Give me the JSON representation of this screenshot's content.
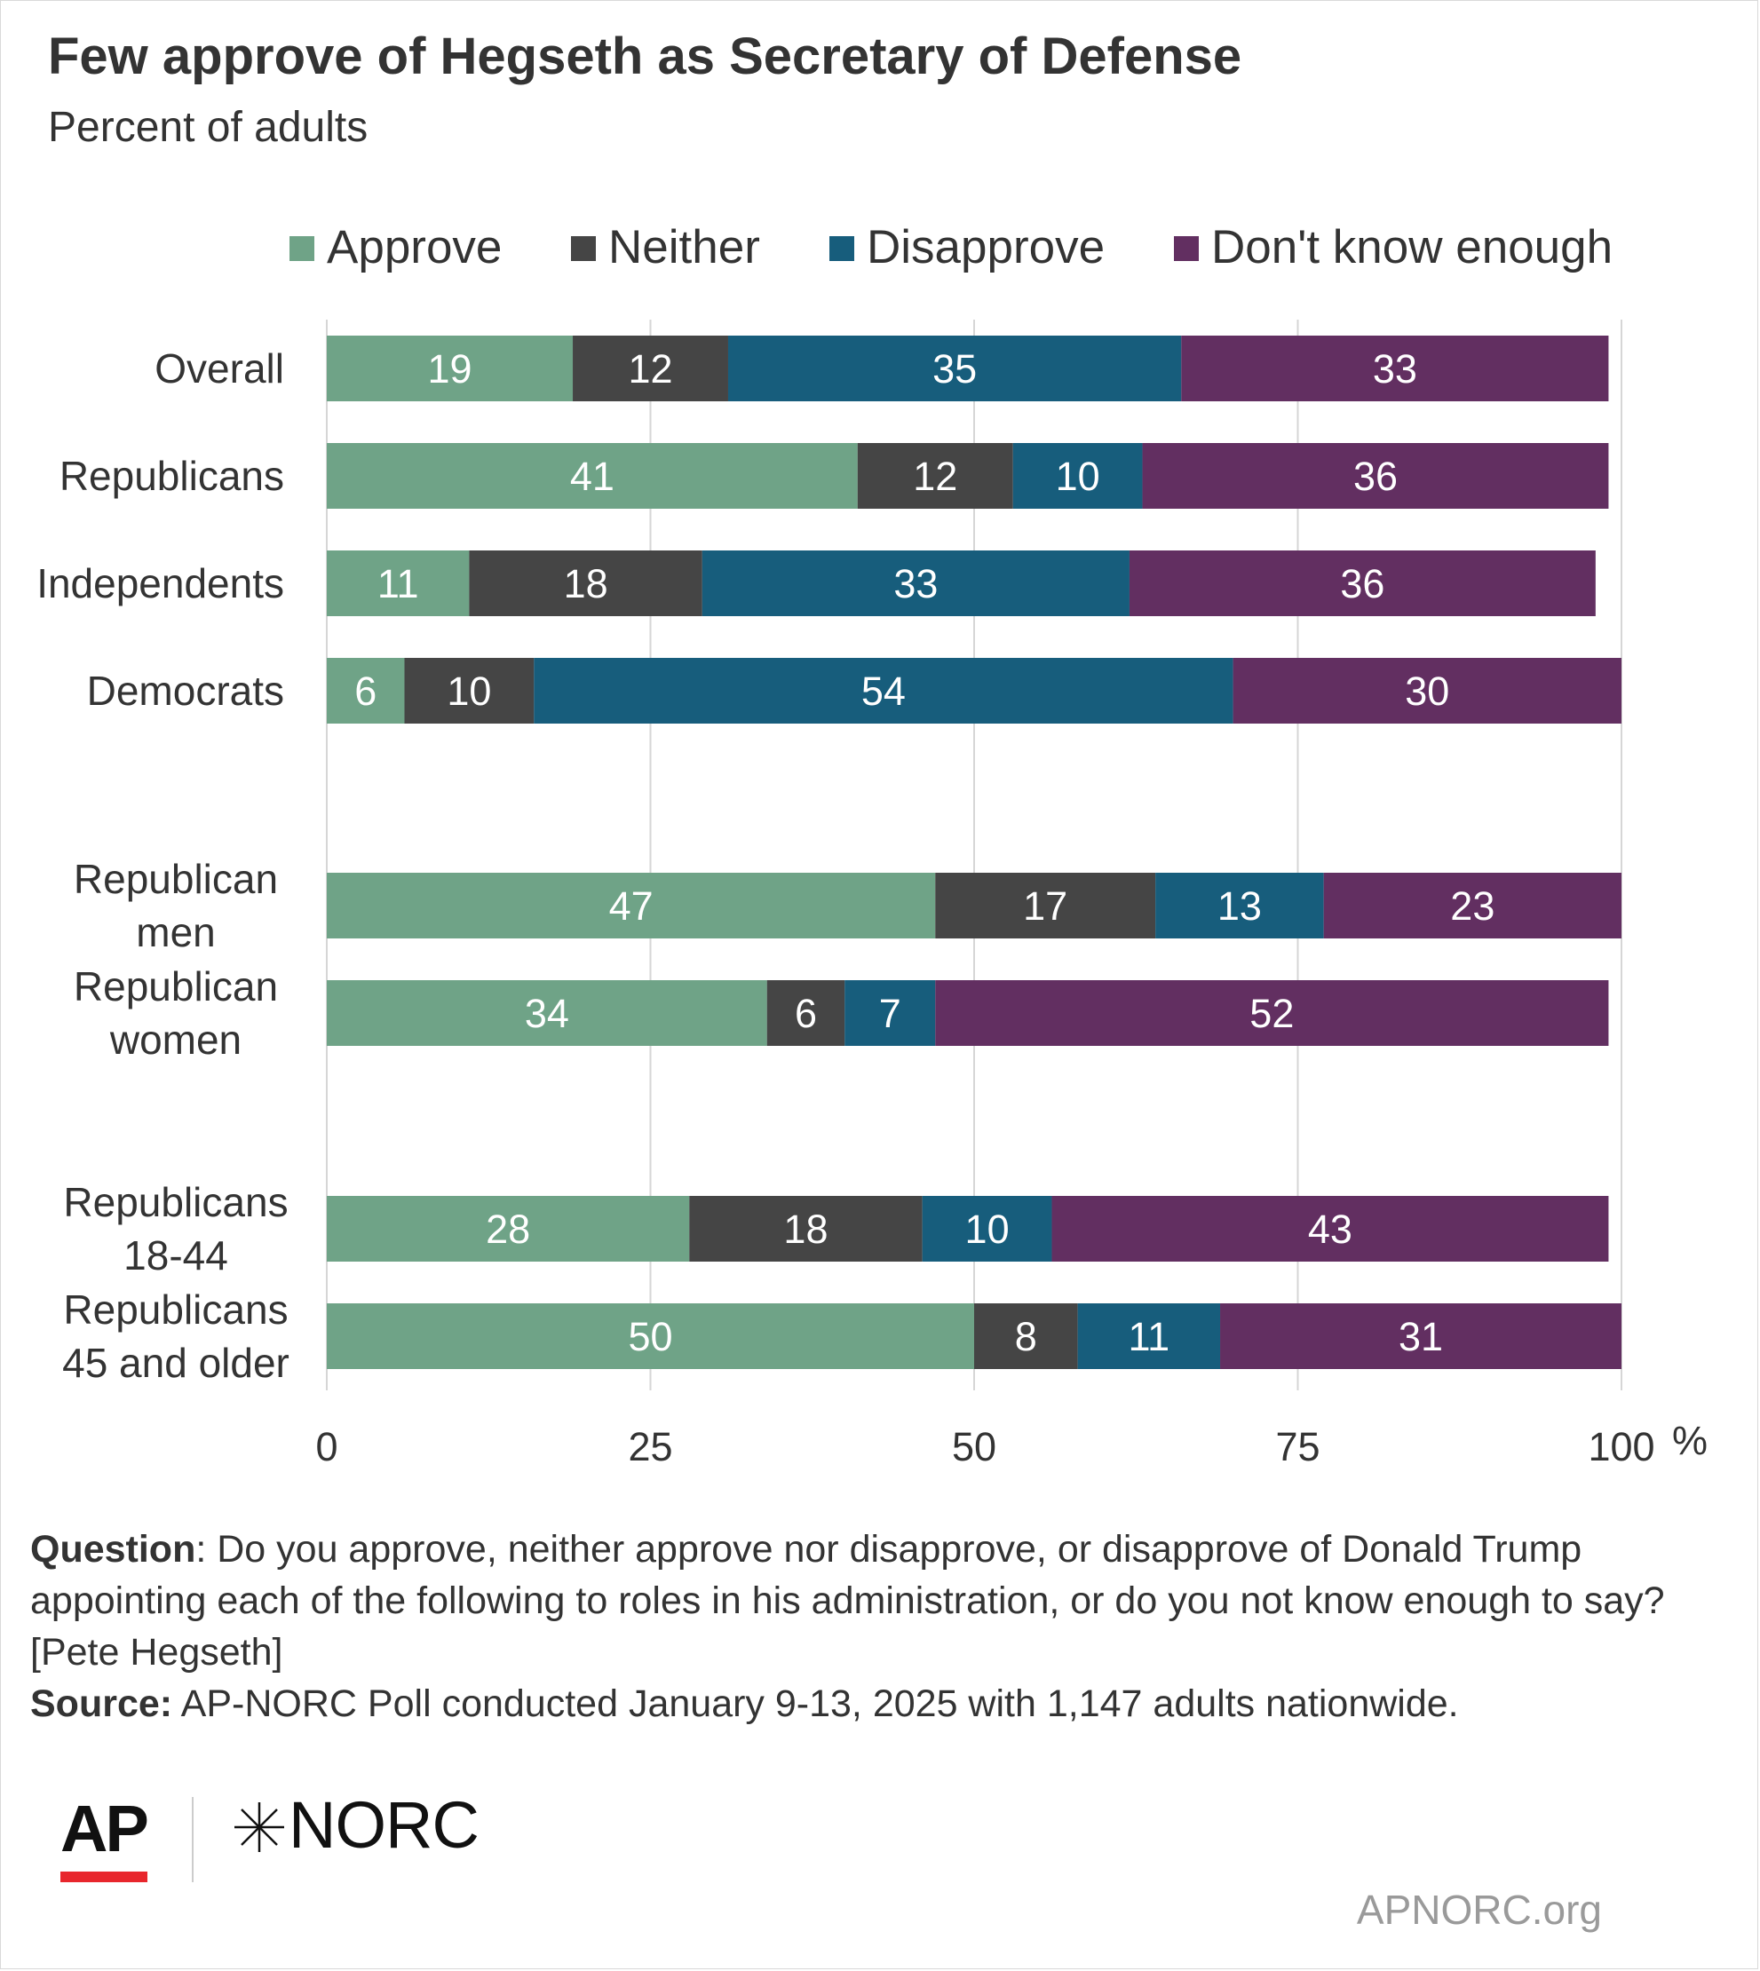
{
  "title": "Few approve of Hegseth as Secretary of Defense",
  "subtitle": "Percent of adults",
  "chart_data": {
    "type": "bar",
    "orientation": "horizontal",
    "stacked": true,
    "categories": [
      "Overall",
      "Republicans",
      "Independents",
      "Democrats",
      "Republican men",
      "Republican women",
      "Republicans 18-44",
      "Republicans 45 and older"
    ],
    "series": [
      {
        "name": "Approve",
        "color": "#6fa387",
        "values": [
          19,
          41,
          11,
          6,
          47,
          34,
          28,
          50
        ]
      },
      {
        "name": "Neither",
        "color": "#454545",
        "values": [
          12,
          12,
          18,
          10,
          17,
          6,
          18,
          8
        ]
      },
      {
        "name": "Disapprove",
        "color": "#175d7c",
        "values": [
          35,
          10,
          33,
          54,
          13,
          7,
          10,
          11
        ]
      },
      {
        "name": "Don't know enough",
        "color": "#622f61",
        "values": [
          33,
          36,
          36,
          30,
          23,
          52,
          43,
          31
        ]
      }
    ],
    "xlim": [
      0,
      100
    ],
    "xticks": [
      "0",
      "25",
      "50",
      "75",
      "100"
    ],
    "xunit": "%",
    "grid": true,
    "legend_position": "top"
  },
  "notes": {
    "question_label": "Question",
    "question_text": ": Do you approve, neither approve nor disapprove, or disapprove of Donald Trump appointing each of the following to roles in his administration, or do you not know enough to say? [Pete Hegseth]",
    "source_label": "Source:",
    "source_text": " AP-NORC Poll conducted January 9-13, 2025 with 1,147 adults nationwide."
  },
  "logos": {
    "ap": "AP",
    "norc": "NORC",
    "site": "APNORC.org"
  }
}
